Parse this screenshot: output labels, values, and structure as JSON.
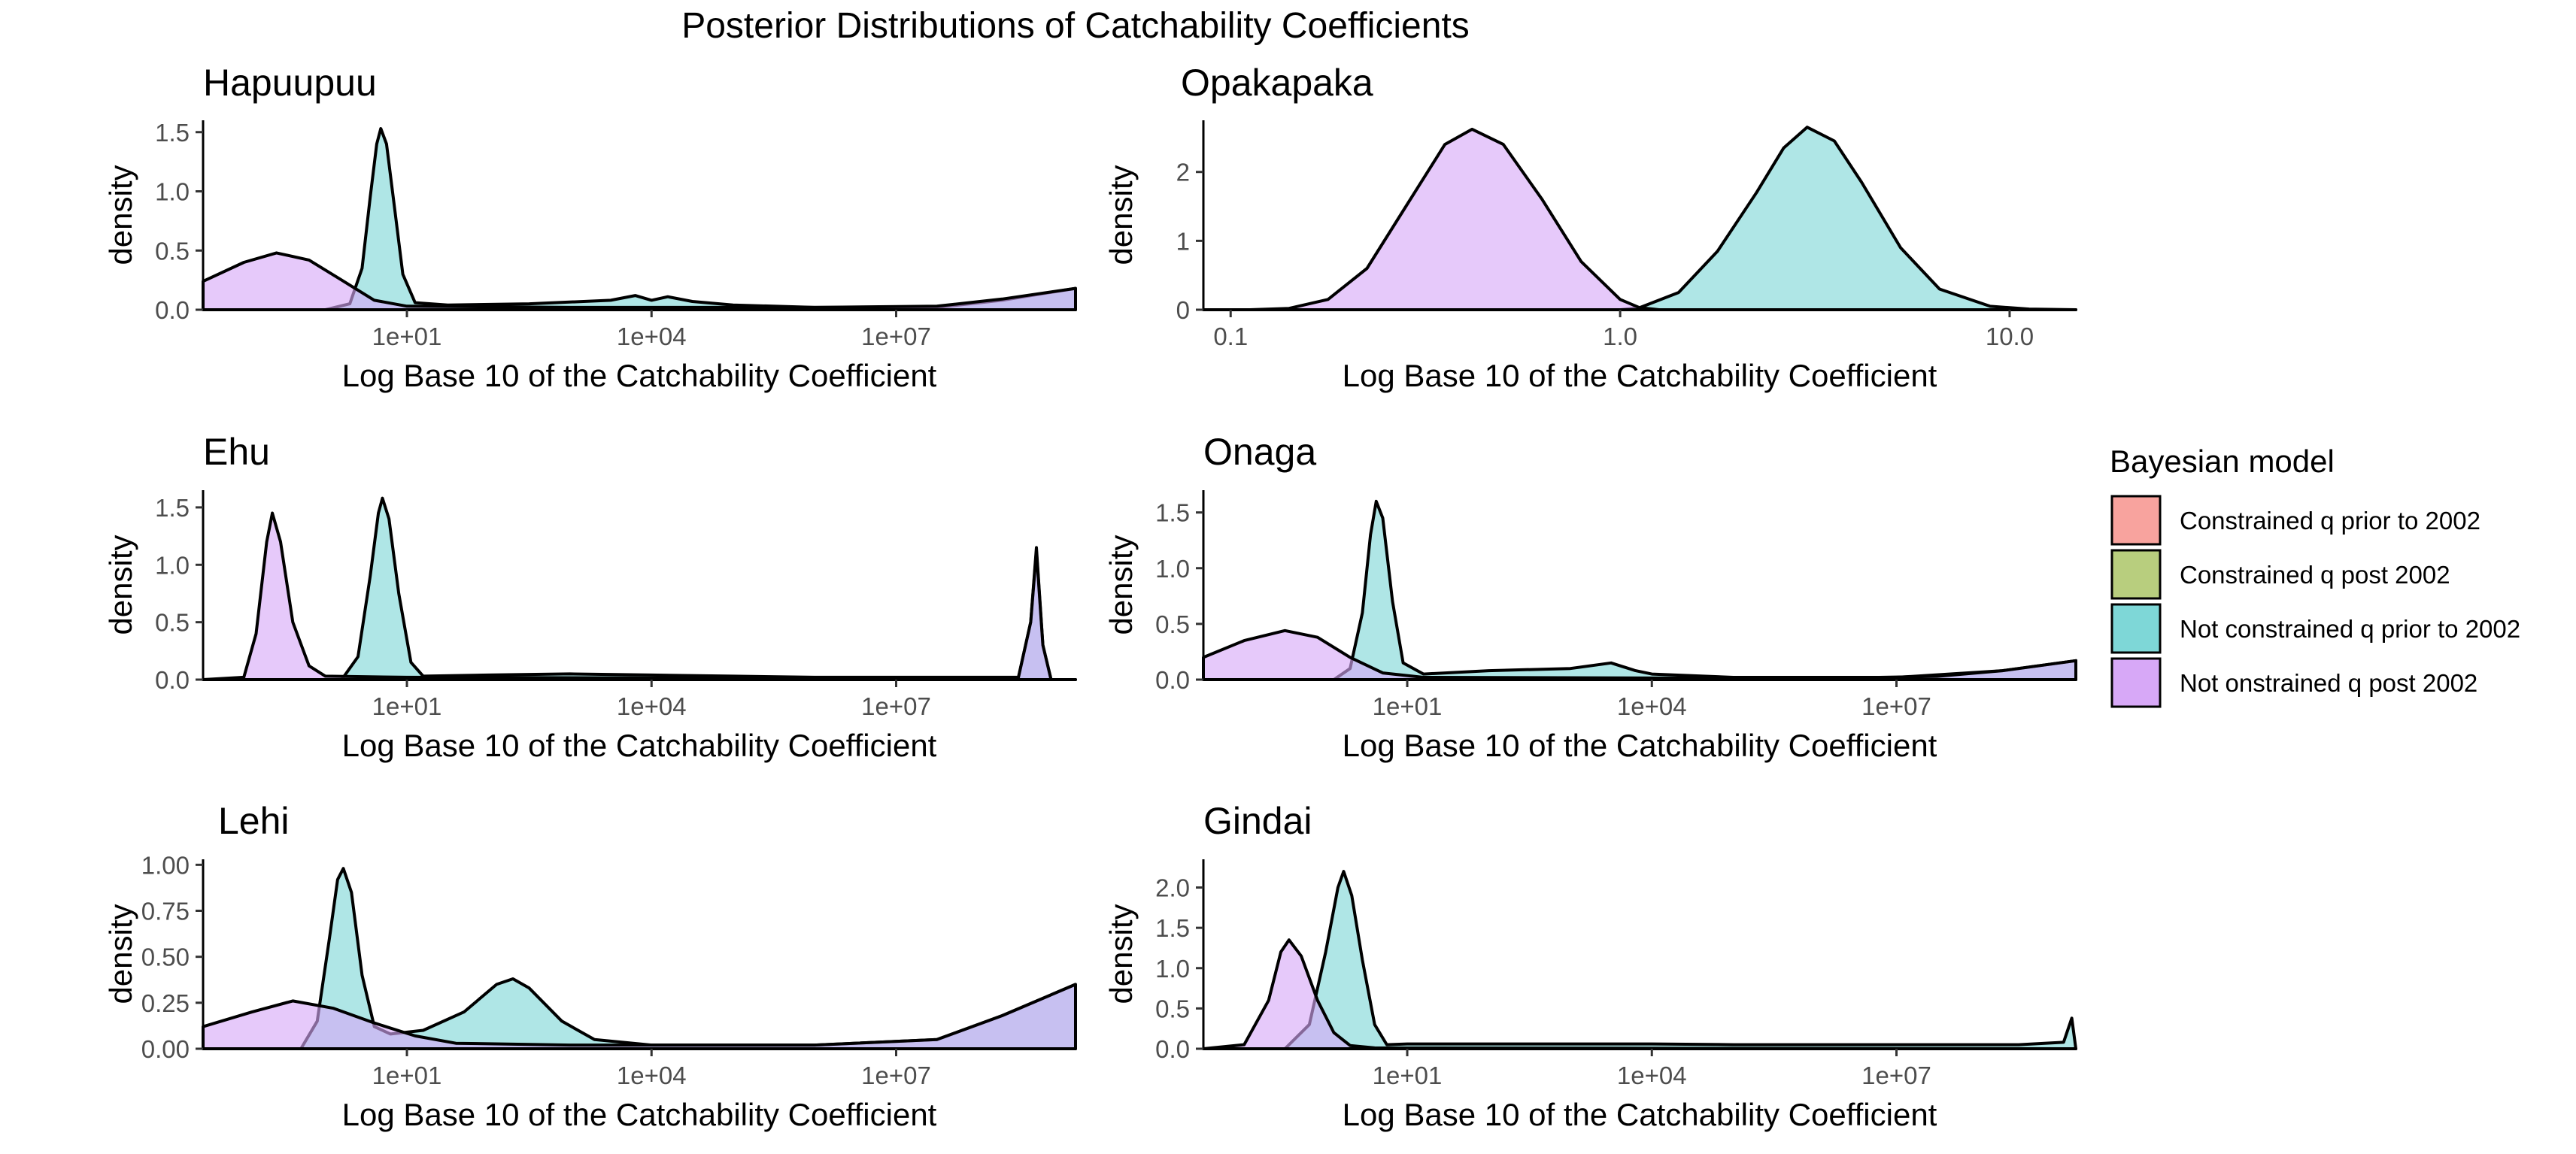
{
  "title": "Posterior Distributions of Catchability Coefficients",
  "legend": {
    "title": "Bayesian model",
    "position": "right",
    "items": [
      {
        "label": "Constrained q prior to 2002",
        "color": "#F8A39E"
      },
      {
        "label": "Constrained q post 2002",
        "color": "#B8CE7E"
      },
      {
        "label": "Not constrained q prior to 2002",
        "color": "#7ED7D7"
      },
      {
        "label": "Not onstrained q post 2002",
        "color": "#D7A8F7"
      }
    ]
  },
  "chart_data": [
    {
      "type": "area",
      "title": "Hapuupuu",
      "xlabel": "Log Base 10 of the Catchability Coefficient",
      "ylabel": "density",
      "x_scale": "log10",
      "x_ticks": [
        "1e+01",
        "1e+04",
        "1e+07"
      ],
      "x_tick_values": [
        1,
        4,
        7
      ],
      "y_ticks": [
        "0.0",
        "0.5",
        "1.0",
        "1.5"
      ],
      "y_tick_values": [
        0,
        0.5,
        1.0,
        1.5
      ],
      "xlim": [
        -1.5,
        9.2
      ],
      "ylim": [
        0,
        1.6
      ],
      "grid": false,
      "series": [
        {
          "name": "Not constrained q prior to 2002",
          "color": "#7ED7D7",
          "points": [
            [
              -1.5,
              0
            ],
            [
              0.0,
              0
            ],
            [
              0.3,
              0.05
            ],
            [
              0.45,
              0.35
            ],
            [
              0.55,
              0.95
            ],
            [
              0.63,
              1.4
            ],
            [
              0.68,
              1.53
            ],
            [
              0.75,
              1.4
            ],
            [
              0.85,
              0.85
            ],
            [
              0.95,
              0.3
            ],
            [
              1.1,
              0.06
            ],
            [
              1.5,
              0.04
            ],
            [
              2.5,
              0.05
            ],
            [
              3.5,
              0.08
            ],
            [
              3.8,
              0.12
            ],
            [
              4.0,
              0.08
            ],
            [
              4.2,
              0.11
            ],
            [
              4.5,
              0.07
            ],
            [
              5.0,
              0.04
            ],
            [
              6.0,
              0.02
            ],
            [
              7.5,
              0.02
            ],
            [
              8.3,
              0.08
            ],
            [
              9.2,
              0.18
            ],
            [
              9.2,
              0
            ]
          ]
        },
        {
          "name": "Not onstrained q post 2002",
          "color": "#D7A8F7",
          "points": [
            [
              -1.5,
              0
            ],
            [
              -1.5,
              0.24
            ],
            [
              -1.0,
              0.4
            ],
            [
              -0.6,
              0.48
            ],
            [
              -0.2,
              0.42
            ],
            [
              0.2,
              0.25
            ],
            [
              0.6,
              0.08
            ],
            [
              1.0,
              0.03
            ],
            [
              3.0,
              0.02
            ],
            [
              6.0,
              0.02
            ],
            [
              7.5,
              0.03
            ],
            [
              8.3,
              0.09
            ],
            [
              9.2,
              0.18
            ],
            [
              9.2,
              0
            ]
          ]
        }
      ]
    },
    {
      "type": "area",
      "title": "Opakapaka",
      "xlabel": "Log Base 10 of the Catchability Coefficient",
      "ylabel": "density",
      "x_scale": "log10",
      "x_ticks": [
        "0.1",
        "1.0",
        "10.0"
      ],
      "x_tick_values": [
        -1,
        0,
        1
      ],
      "y_ticks": [
        "0",
        "1",
        "2"
      ],
      "y_tick_values": [
        0,
        1,
        2
      ],
      "xlim": [
        -1.07,
        1.17
      ],
      "ylim": [
        0,
        2.75
      ],
      "grid": false,
      "series": [
        {
          "name": "Not constrained q prior to 2002",
          "color": "#7ED7D7",
          "points": [
            [
              -1.07,
              0
            ],
            [
              0.0,
              0
            ],
            [
              0.05,
              0.03
            ],
            [
              0.15,
              0.25
            ],
            [
              0.25,
              0.85
            ],
            [
              0.35,
              1.7
            ],
            [
              0.42,
              2.35
            ],
            [
              0.48,
              2.65
            ],
            [
              0.55,
              2.45
            ],
            [
              0.62,
              1.85
            ],
            [
              0.72,
              0.9
            ],
            [
              0.82,
              0.3
            ],
            [
              0.95,
              0.05
            ],
            [
              1.05,
              0.01
            ],
            [
              1.17,
              0
            ]
          ]
        },
        {
          "name": "Not onstrained q post 2002",
          "color": "#D7A8F7",
          "points": [
            [
              -1.07,
              0
            ],
            [
              -0.95,
              0
            ],
            [
              -0.85,
              0.02
            ],
            [
              -0.75,
              0.15
            ],
            [
              -0.65,
              0.6
            ],
            [
              -0.55,
              1.5
            ],
            [
              -0.45,
              2.4
            ],
            [
              -0.38,
              2.62
            ],
            [
              -0.3,
              2.4
            ],
            [
              -0.2,
              1.6
            ],
            [
              -0.1,
              0.7
            ],
            [
              0.0,
              0.15
            ],
            [
              0.05,
              0.03
            ],
            [
              0.1,
              0
            ],
            [
              1.17,
              0
            ]
          ]
        }
      ]
    },
    {
      "type": "area",
      "title": "Ehu",
      "xlabel": "Log Base 10 of the Catchability Coefficient",
      "ylabel": "density",
      "x_scale": "log10",
      "x_ticks": [
        "1e+01",
        "1e+04",
        "1e+07"
      ],
      "x_tick_values": [
        1,
        4,
        7
      ],
      "y_ticks": [
        "0.0",
        "0.5",
        "1.0",
        "1.5"
      ],
      "y_tick_values": [
        0,
        0.5,
        1.0,
        1.5
      ],
      "xlim": [
        -1.5,
        9.2
      ],
      "ylim": [
        0,
        1.65
      ],
      "grid": false,
      "series": [
        {
          "name": "Not constrained q prior to 2002",
          "color": "#7ED7D7",
          "points": [
            [
              -1.5,
              0
            ],
            [
              0.2,
              0
            ],
            [
              0.4,
              0.2
            ],
            [
              0.55,
              0.9
            ],
            [
              0.65,
              1.45
            ],
            [
              0.7,
              1.58
            ],
            [
              0.78,
              1.4
            ],
            [
              0.9,
              0.75
            ],
            [
              1.05,
              0.15
            ],
            [
              1.2,
              0.03
            ],
            [
              2.0,
              0.04
            ],
            [
              3.0,
              0.05
            ],
            [
              4.0,
              0.04
            ],
            [
              5.0,
              0.03
            ],
            [
              6.0,
              0.02
            ],
            [
              7.0,
              0.02
            ],
            [
              8.5,
              0.02
            ],
            [
              8.65,
              0.5
            ],
            [
              8.72,
              1.15
            ],
            [
              8.8,
              0.3
            ],
            [
              8.9,
              0
            ],
            [
              9.2,
              0
            ]
          ]
        },
        {
          "name": "Not onstrained q post 2002",
          "color": "#D7A8F7",
          "points": [
            [
              -1.5,
              0
            ],
            [
              -1.0,
              0.02
            ],
            [
              -0.85,
              0.4
            ],
            [
              -0.72,
              1.2
            ],
            [
              -0.65,
              1.45
            ],
            [
              -0.55,
              1.2
            ],
            [
              -0.4,
              0.5
            ],
            [
              -0.2,
              0.12
            ],
            [
              0.0,
              0.03
            ],
            [
              1.0,
              0.02
            ],
            [
              6.0,
              0.01
            ],
            [
              8.5,
              0.02
            ],
            [
              8.65,
              0.5
            ],
            [
              8.72,
              1.12
            ],
            [
              8.8,
              0.3
            ],
            [
              8.9,
              0
            ],
            [
              9.2,
              0
            ]
          ]
        }
      ]
    },
    {
      "type": "area",
      "title": "Onaga",
      "xlabel": "Log Base 10 of the Catchability Coefficient",
      "ylabel": "density",
      "x_scale": "log10",
      "x_ticks": [
        "1e+01",
        "1e+04",
        "1e+07"
      ],
      "x_tick_values": [
        1,
        4,
        7
      ],
      "y_ticks": [
        "0.0",
        "0.5",
        "1.0",
        "1.5"
      ],
      "y_tick_values": [
        0,
        0.5,
        1.0,
        1.5
      ],
      "xlim": [
        -1.5,
        9.2
      ],
      "ylim": [
        0,
        1.7
      ],
      "grid": false,
      "series": [
        {
          "name": "Not constrained q prior to 2002",
          "color": "#7ED7D7",
          "points": [
            [
              -1.5,
              0
            ],
            [
              0.1,
              0
            ],
            [
              0.3,
              0.1
            ],
            [
              0.45,
              0.6
            ],
            [
              0.55,
              1.3
            ],
            [
              0.62,
              1.6
            ],
            [
              0.7,
              1.45
            ],
            [
              0.82,
              0.7
            ],
            [
              0.95,
              0.15
            ],
            [
              1.2,
              0.05
            ],
            [
              2.0,
              0.08
            ],
            [
              3.0,
              0.1
            ],
            [
              3.5,
              0.15
            ],
            [
              3.8,
              0.08
            ],
            [
              4.0,
              0.05
            ],
            [
              5.0,
              0.02
            ],
            [
              7.0,
              0.02
            ],
            [
              8.3,
              0.08
            ],
            [
              9.2,
              0.17
            ],
            [
              9.2,
              0
            ]
          ]
        },
        {
          "name": "Not onstrained q post 2002",
          "color": "#D7A8F7",
          "points": [
            [
              -1.5,
              0
            ],
            [
              -1.5,
              0.2
            ],
            [
              -1.0,
              0.35
            ],
            [
              -0.5,
              0.44
            ],
            [
              -0.1,
              0.38
            ],
            [
              0.3,
              0.2
            ],
            [
              0.7,
              0.06
            ],
            [
              1.2,
              0.02
            ],
            [
              6.0,
              0.01
            ],
            [
              7.5,
              0.03
            ],
            [
              8.3,
              0.08
            ],
            [
              9.2,
              0.17
            ],
            [
              9.2,
              0
            ]
          ]
        }
      ]
    },
    {
      "type": "area",
      "title": "Lehi",
      "xlabel": "Log Base 10 of the Catchability Coefficient",
      "ylabel": "density",
      "x_scale": "log10",
      "x_ticks": [
        "1e+01",
        "1e+04",
        "1e+07"
      ],
      "x_tick_values": [
        1,
        4,
        7
      ],
      "y_ticks": [
        "0.00",
        "0.25",
        "0.50",
        "0.75",
        "1.00"
      ],
      "y_tick_values": [
        0,
        0.25,
        0.5,
        0.75,
        1.0
      ],
      "xlim": [
        -1.5,
        9.2
      ],
      "ylim": [
        0,
        1.03
      ],
      "grid": false,
      "series": [
        {
          "name": "Not constrained q prior to 2002",
          "color": "#7ED7D7",
          "points": [
            [
              -1.5,
              0
            ],
            [
              -0.3,
              0
            ],
            [
              -0.1,
              0.15
            ],
            [
              0.05,
              0.6
            ],
            [
              0.15,
              0.92
            ],
            [
              0.22,
              0.98
            ],
            [
              0.32,
              0.85
            ],
            [
              0.45,
              0.4
            ],
            [
              0.6,
              0.12
            ],
            [
              0.8,
              0.08
            ],
            [
              1.2,
              0.1
            ],
            [
              1.7,
              0.2
            ],
            [
              2.1,
              0.35
            ],
            [
              2.3,
              0.38
            ],
            [
              2.5,
              0.33
            ],
            [
              2.9,
              0.15
            ],
            [
              3.3,
              0.05
            ],
            [
              4.0,
              0.02
            ],
            [
              6.0,
              0.02
            ],
            [
              7.5,
              0.05
            ],
            [
              8.3,
              0.18
            ],
            [
              9.2,
              0.35
            ],
            [
              9.2,
              0
            ]
          ]
        },
        {
          "name": "Not onstrained q post 2002",
          "color": "#D7A8F7",
          "points": [
            [
              -1.5,
              0
            ],
            [
              -1.5,
              0.12
            ],
            [
              -0.9,
              0.2
            ],
            [
              -0.4,
              0.26
            ],
            [
              0.1,
              0.22
            ],
            [
              0.6,
              0.14
            ],
            [
              1.1,
              0.07
            ],
            [
              1.6,
              0.03
            ],
            [
              3.0,
              0.02
            ],
            [
              6.0,
              0.02
            ],
            [
              7.5,
              0.05
            ],
            [
              8.3,
              0.18
            ],
            [
              9.2,
              0.35
            ],
            [
              9.2,
              0
            ]
          ]
        }
      ]
    },
    {
      "type": "area",
      "title": "Gindai",
      "xlabel": "Log Base 10 of the Catchability Coefficient",
      "ylabel": "density",
      "x_scale": "log10",
      "x_ticks": [
        "1e+01",
        "1e+04",
        "1e+07"
      ],
      "x_tick_values": [
        1,
        4,
        7
      ],
      "y_ticks": [
        "0.0",
        "0.5",
        "1.0",
        "1.5",
        "2.0"
      ],
      "y_tick_values": [
        0,
        0.5,
        1.0,
        1.5,
        2.0
      ],
      "xlim": [
        -1.5,
        9.2
      ],
      "ylim": [
        0,
        2.35
      ],
      "grid": false,
      "series": [
        {
          "name": "Not constrained q prior to 2002",
          "color": "#7ED7D7",
          "points": [
            [
              -1.5,
              0
            ],
            [
              -0.5,
              0
            ],
            [
              -0.2,
              0.3
            ],
            [
              0.0,
              1.2
            ],
            [
              0.15,
              2.0
            ],
            [
              0.22,
              2.2
            ],
            [
              0.32,
              1.9
            ],
            [
              0.45,
              1.1
            ],
            [
              0.6,
              0.3
            ],
            [
              0.75,
              0.05
            ],
            [
              1.0,
              0.06
            ],
            [
              2.0,
              0.06
            ],
            [
              3.0,
              0.06
            ],
            [
              4.0,
              0.06
            ],
            [
              5.0,
              0.05
            ],
            [
              6.0,
              0.05
            ],
            [
              7.0,
              0.05
            ],
            [
              8.5,
              0.05
            ],
            [
              9.05,
              0.08
            ],
            [
              9.15,
              0.38
            ],
            [
              9.2,
              0
            ]
          ]
        },
        {
          "name": "Not onstrained q post 2002",
          "color": "#D7A8F7",
          "points": [
            [
              -1.5,
              0
            ],
            [
              -1.0,
              0.05
            ],
            [
              -0.7,
              0.6
            ],
            [
              -0.55,
              1.2
            ],
            [
              -0.45,
              1.35
            ],
            [
              -0.3,
              1.15
            ],
            [
              -0.1,
              0.6
            ],
            [
              0.1,
              0.2
            ],
            [
              0.3,
              0.04
            ],
            [
              0.6,
              0.01
            ],
            [
              9.2,
              0
            ]
          ]
        }
      ]
    }
  ]
}
